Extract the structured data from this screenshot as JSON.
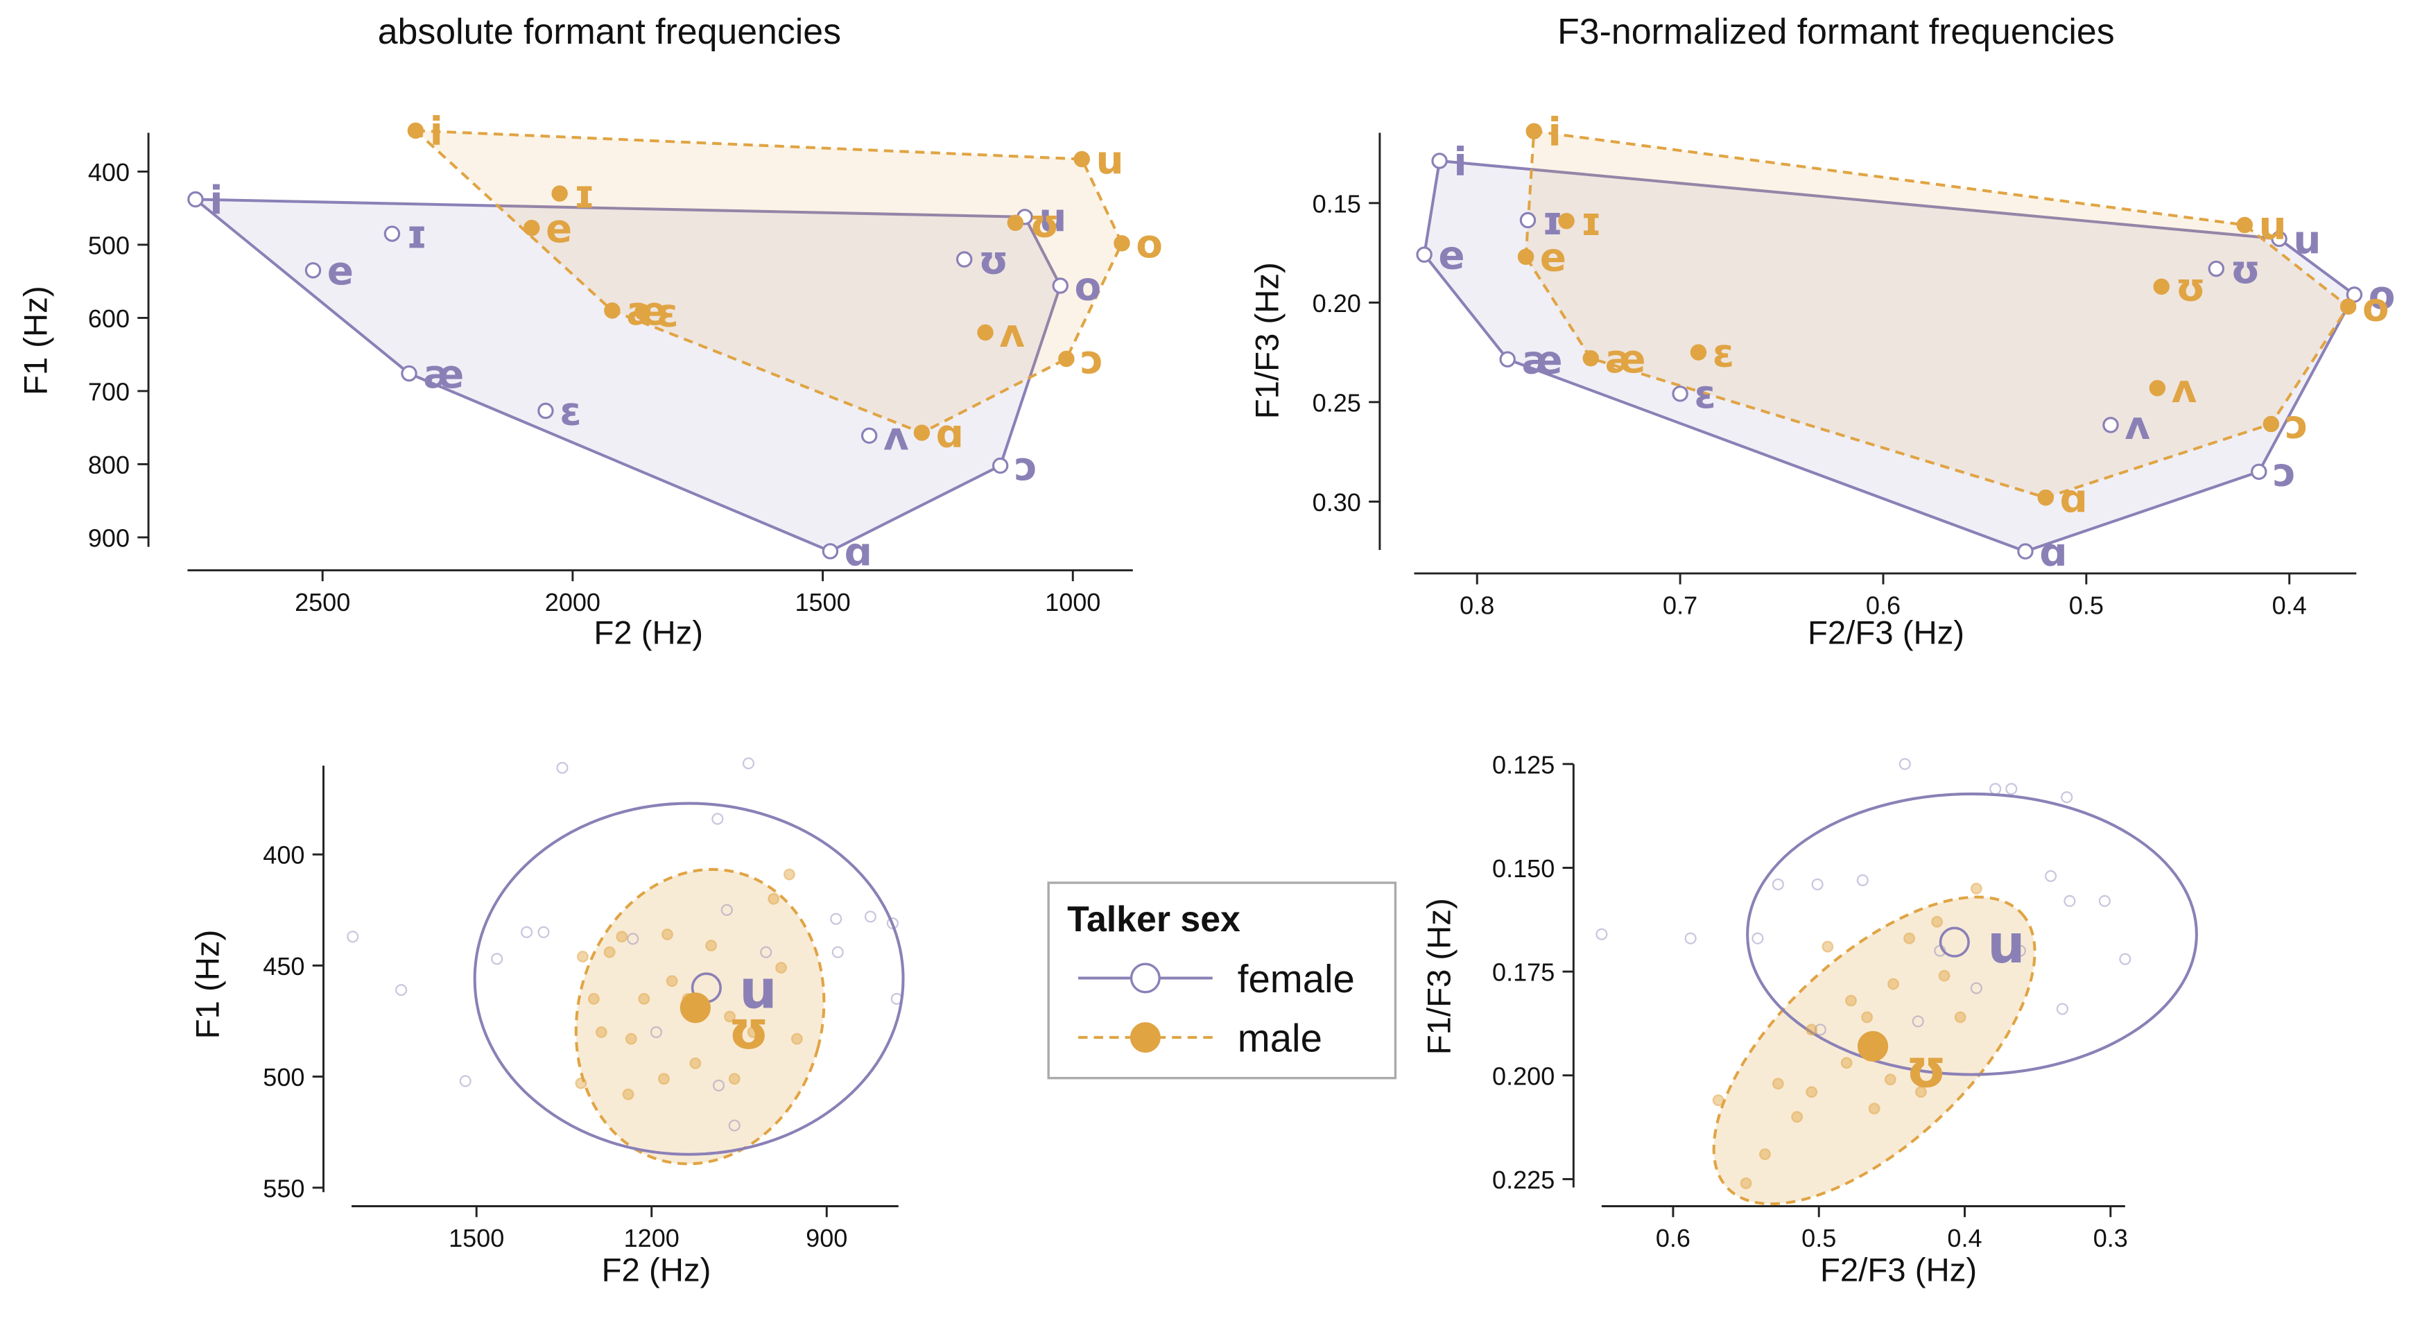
{
  "chart_data": [
    {
      "type": "vowel_space",
      "title": "absolute formant frequencies",
      "x_label": "F2 (Hz)",
      "y_label": "F1 (Hz)",
      "xlim": [
        880,
        2770
      ],
      "ylim": [
        347,
        913
      ],
      "x_reversed": true,
      "y_reversed": true,
      "xticks": [
        2500,
        2000,
        1500,
        1000
      ],
      "yticks": [
        400,
        500,
        600,
        700,
        800,
        900
      ],
      "series": [
        {
          "name": "female",
          "color": "#8b80b6",
          "marker": "open",
          "line_style": "solid",
          "labels": [
            "i",
            "ɪ",
            "e",
            "æ",
            "ɛ",
            "ʌ",
            "ɑ",
            "ɔ",
            "o",
            "ʊ",
            "u"
          ],
          "x": [
            2754,
            2361,
            2519,
            2327,
            2054,
            1407,
            1485,
            1145,
            1025,
            1217,
            1096
          ],
          "y": [
            438,
            485,
            535,
            676,
            727,
            761,
            919,
            802,
            556,
            520,
            462
          ]
        },
        {
          "name": "male",
          "color": "#e0a443",
          "marker": "filled",
          "line_style": "dashed",
          "labels": [
            "i",
            "ɪ",
            "e",
            "æ",
            "ɛ",
            "ʌ",
            "ɑ",
            "ɔ",
            "o",
            "ʊ",
            "u"
          ],
          "x": [
            2314,
            2026,
            2082,
            1921,
            1860,
            1175,
            1302,
            1013,
            902,
            1115,
            982
          ],
          "y": [
            344,
            430,
            477,
            590,
            592,
            620,
            757,
            656,
            498,
            470,
            383
          ]
        }
      ]
    },
    {
      "type": "vowel_space",
      "title": "F3-normalized formant frequencies",
      "x_label": "F2/F3 (Hz)",
      "y_label": "F1/F3 (Hz)",
      "xlim": [
        0.367,
        0.831
      ],
      "ylim": [
        0.1147,
        0.3243
      ],
      "x_reversed": true,
      "y_reversed": true,
      "xticks": [
        0.8,
        0.7,
        0.6,
        0.5,
        0.4
      ],
      "yticks": [
        0.15,
        {
          "value": 0.2,
          "label": "0.20"
        },
        0.25,
        {
          "value": 0.3,
          "label": "0.30"
        }
      ],
      "series": [
        {
          "name": "female",
          "color": "#8b80b6",
          "marker": "open",
          "line_style": "solid",
          "labels": [
            "i",
            "ɪ",
            "e",
            "æ",
            "ɛ",
            "ʌ",
            "ɑ",
            "ɔ",
            "o",
            "ʊ",
            "u"
          ],
          "x": [
            0.8185,
            0.775,
            0.826,
            0.785,
            0.7,
            0.488,
            0.53,
            0.415,
            0.368,
            0.436,
            0.405
          ],
          "y": [
            0.1288,
            0.1586,
            0.1759,
            0.2285,
            0.2458,
            0.2615,
            0.325,
            0.285,
            0.196,
            0.183,
            0.168
          ]
        },
        {
          "name": "male",
          "color": "#e0a443",
          "marker": "filled",
          "line_style": "dashed",
          "labels": [
            "i",
            "ɪ",
            "e",
            "æ",
            "ɛ",
            "ʌ",
            "ɑ",
            "ɔ",
            "o",
            "ʊ",
            "u"
          ],
          "x": [
            0.772,
            0.756,
            0.776,
            0.744,
            0.691,
            0.465,
            0.52,
            0.409,
            0.371,
            0.463,
            0.422
          ],
          "y": [
            0.1139,
            0.159,
            0.177,
            0.228,
            0.225,
            0.243,
            0.298,
            0.261,
            0.202,
            0.192,
            0.161
          ]
        }
      ]
    },
    {
      "type": "ellipse_scatter",
      "x_label": "F2 (Hz)",
      "y_label": "F1 (Hz)",
      "legend_title": "Talker sex",
      "xlim": [
        777,
        1714
      ],
      "ylim": [
        360,
        552
      ],
      "x_reversed": true,
      "y_reversed": true,
      "xticks": [
        1500,
        1200,
        900
      ],
      "yticks": [
        400,
        450,
        500,
        550
      ],
      "series": [
        {
          "name": "female",
          "color": "#8b80b6",
          "marker": "open",
          "line_style": "solid",
          "x": [
            1353,
            1034,
            1712,
            1629,
            1519,
            1465,
            1414,
            1385,
            1232,
            1087,
            1071,
            884,
            825,
            787,
            780,
            881,
            1085,
            1058,
            1004,
            1192
          ],
          "y": [
            361,
            359,
            437,
            461,
            502,
            447,
            435,
            435,
            438,
            384,
            425,
            429,
            428,
            431,
            465,
            444,
            504,
            522,
            444,
            480
          ],
          "mean": {
            "x": 1106,
            "y": 460,
            "label": "u"
          },
          "ellipse": {
            "cx": 1136,
            "cy": 456,
            "rx": 367,
            "ry": 79,
            "angle": 0
          }
        },
        {
          "name": "male",
          "color": "#e0a443",
          "marker": "filled",
          "line_style": "dashed",
          "x": [
            1318,
            1299,
            1321,
            1286,
            1251,
            1235,
            1173,
            1165,
            1125,
            1066,
            1026,
            991,
            964,
            978,
            951,
            1240,
            1213,
            1098,
            1058,
            1138,
            1272,
            1179
          ],
          "y": [
            446,
            465,
            503,
            480,
            437,
            483,
            436,
            457,
            494,
            473,
            480,
            420,
            409,
            451,
            483,
            508,
            465,
            441,
            501,
            465,
            444,
            501
          ],
          "mean": {
            "x": 1125,
            "y": 469,
            "label": "ʊ"
          },
          "ellipse": {
            "cx": 1117,
            "cy": 473,
            "rx": 209,
            "ry": 67,
            "angle": 15
          }
        }
      ]
    },
    {
      "type": "ellipse_scatter",
      "x_label": "F2/F3 (Hz)",
      "y_label": "F1/F3 (Hz)",
      "xlim": [
        0.29,
        0.649
      ],
      "ylim": [
        0.125,
        0.227
      ],
      "x_reversed": true,
      "y_reversed": true,
      "xticks": [
        0.6,
        0.5,
        0.4,
        0.3
      ],
      "yticks": [
        0.125,
        {
          "value": 0.15,
          "label": "0.150"
        },
        0.175,
        {
          "value": 0.2,
          "label": "0.200"
        },
        0.225
      ],
      "series": [
        {
          "name": "female",
          "color": "#8b80b6",
          "marker": "open",
          "line_style": "solid",
          "x": [
            0.649,
            0.588,
            0.528,
            0.501,
            0.47,
            0.441,
            0.379,
            0.368,
            0.33,
            0.341,
            0.328,
            0.304,
            0.29,
            0.333,
            0.362,
            0.417,
            0.432,
            0.392,
            0.542,
            0.499
          ],
          "y": [
            0.166,
            0.167,
            0.154,
            0.154,
            0.153,
            0.125,
            0.131,
            0.131,
            0.133,
            0.152,
            0.158,
            0.158,
            0.172,
            0.184,
            0.17,
            0.17,
            0.187,
            0.179,
            0.167,
            0.189
          ],
          "mean": {
            "x": 0.407,
            "y": 0.1679,
            "label": "u"
          },
          "ellipse": {
            "cx": 0.395,
            "cy": 0.166,
            "rx": 0.154,
            "ry": 0.0338,
            "angle": 0
          }
        },
        {
          "name": "male",
          "color": "#e0a443",
          "marker": "filled",
          "line_style": "dashed",
          "x": [
            0.55,
            0.569,
            0.528,
            0.505,
            0.494,
            0.478,
            0.449,
            0.438,
            0.419,
            0.392,
            0.403,
            0.43,
            0.451,
            0.481,
            0.515,
            0.537,
            0.462,
            0.414,
            0.505,
            0.467
          ],
          "y": [
            0.226,
            0.206,
            0.202,
            0.189,
            0.169,
            0.182,
            0.178,
            0.167,
            0.163,
            0.155,
            0.186,
            0.204,
            0.201,
            0.197,
            0.21,
            0.219,
            0.208,
            0.176,
            0.204,
            0.186
          ],
          "mean": {
            "x": 0.463,
            "y": 0.193,
            "label": "ʊ"
          },
          "ellipse": {
            "cx": 0.462,
            "cy": 0.194,
            "rx": 0.138,
            "ry": 0.0226,
            "angle": -43
          }
        }
      ]
    }
  ]
}
